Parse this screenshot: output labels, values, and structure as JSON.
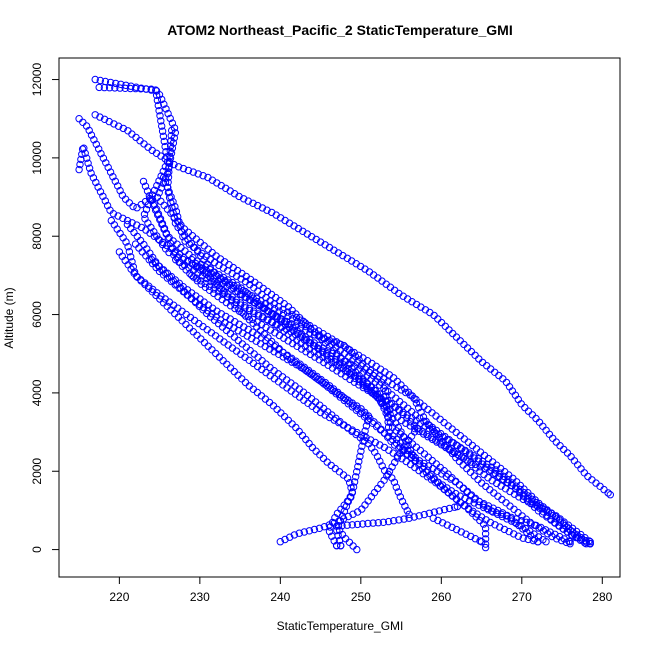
{
  "chart_data": {
    "type": "scatter",
    "title": "ATOM2 Northeast_Pacific_2 StaticTemperature_GMI",
    "xlabel": "StaticTemperature_GMI",
    "ylabel": "Altitude (m)",
    "xlim": [
      212.5,
      282.2
    ],
    "ylim": [
      -700,
      12550
    ],
    "x_ticks": [
      220,
      230,
      240,
      250,
      260,
      270,
      280
    ],
    "x_tick_labels": [
      "220",
      "230",
      "240",
      "250",
      "260",
      "270",
      "280"
    ],
    "y_ticks": [
      0,
      2000,
      4000,
      6000,
      8000,
      10000,
      12000
    ],
    "y_tick_labels": [
      "0",
      "2000",
      "4000",
      "6000",
      "8000",
      "10000",
      "12000"
    ],
    "grid": false,
    "legend": "none",
    "marker": "open-circle",
    "color": "#0000ff",
    "series": [
      {
        "points": [
          [
            217,
            12000
          ],
          [
            224.8,
            11700
          ],
          [
            227,
            10700
          ],
          [
            226,
            9600
          ],
          [
            224.7,
            9000
          ],
          [
            228,
            8200
          ],
          [
            232,
            7500
          ],
          [
            237,
            6800
          ],
          [
            241,
            6200
          ],
          [
            247,
            5000
          ],
          [
            252,
            4000
          ],
          [
            254,
            3100
          ],
          [
            257,
            2600
          ],
          [
            261,
            1900
          ],
          [
            264,
            1300
          ],
          [
            268,
            900
          ],
          [
            272,
            200
          ]
        ]
      },
      {
        "points": [
          [
            217.5,
            11800
          ],
          [
            224.5,
            11750
          ],
          [
            226,
            9900
          ],
          [
            224,
            9000
          ],
          [
            223,
            8500
          ],
          [
            226,
            7600
          ],
          [
            232,
            7000
          ],
          [
            238,
            6300
          ],
          [
            244,
            5600
          ],
          [
            250,
            4700
          ],
          [
            253,
            4200
          ],
          [
            253.5,
            3000
          ],
          [
            257,
            2300
          ],
          [
            262,
            1700
          ],
          [
            266,
            1000
          ],
          [
            272,
            600
          ],
          [
            276,
            200
          ]
        ]
      },
      {
        "points": [
          [
            215,
            11000
          ],
          [
            216,
            10800
          ],
          [
            220.5,
            9000
          ],
          [
            222,
            8700
          ],
          [
            224,
            9000
          ],
          [
            226,
            8000
          ],
          [
            230,
            7300
          ],
          [
            235,
            6700
          ],
          [
            239,
            6000
          ],
          [
            243,
            5400
          ],
          [
            248,
            4600
          ],
          [
            252,
            3900
          ],
          [
            255,
            3300
          ],
          [
            259,
            2800
          ],
          [
            263,
            2300
          ],
          [
            266,
            1800
          ],
          [
            270,
            1300
          ],
          [
            274,
            900
          ],
          [
            278.5,
            200
          ]
        ]
      },
      {
        "points": [
          [
            215,
            9700
          ],
          [
            215.5,
            10300
          ],
          [
            216.5,
            9600
          ],
          [
            219,
            8600
          ],
          [
            223,
            8200
          ],
          [
            227,
            7600
          ],
          [
            231,
            7000
          ],
          [
            236,
            6400
          ],
          [
            240,
            5900
          ],
          [
            244,
            5300
          ],
          [
            249,
            4700
          ],
          [
            253,
            4100
          ],
          [
            257,
            3400
          ],
          [
            261,
            2800
          ],
          [
            265,
            2200
          ],
          [
            269,
            1600
          ],
          [
            272,
            1000
          ],
          [
            276,
            400
          ],
          [
            278.5,
            150
          ]
        ]
      },
      {
        "points": [
          [
            219,
            8400
          ],
          [
            221,
            7800
          ],
          [
            222,
            7000
          ],
          [
            225,
            6500
          ],
          [
            229,
            5900
          ],
          [
            233,
            5300
          ],
          [
            237,
            4700
          ],
          [
            241,
            4100
          ],
          [
            245,
            3500
          ],
          [
            248.5,
            3100
          ],
          [
            253,
            2600
          ],
          [
            256,
            2200
          ],
          [
            260,
            1600
          ],
          [
            263,
            1100
          ],
          [
            266,
            700
          ],
          [
            270,
            300
          ],
          [
            272,
            200
          ]
        ]
      },
      {
        "points": [
          [
            221,
            8300
          ],
          [
            223,
            7800
          ],
          [
            225,
            7200
          ],
          [
            228,
            6600
          ],
          [
            231,
            6000
          ],
          [
            235,
            5300
          ],
          [
            239,
            4600
          ],
          [
            243,
            4000
          ],
          [
            246,
            3500
          ],
          [
            249,
            3000
          ],
          [
            251,
            2700
          ],
          [
            252,
            2400
          ],
          [
            253,
            2000
          ],
          [
            254,
            1800
          ],
          [
            255,
            1300
          ],
          [
            256,
            900
          ]
        ]
      },
      {
        "points": [
          [
            220,
            7600
          ],
          [
            222,
            7000
          ],
          [
            224,
            6600
          ],
          [
            227,
            6000
          ],
          [
            230,
            5400
          ],
          [
            233,
            4800
          ],
          [
            236,
            4200
          ],
          [
            239,
            3700
          ],
          [
            242,
            3100
          ],
          [
            244,
            2600
          ],
          [
            246,
            2200
          ],
          [
            248.5,
            1800
          ],
          [
            249,
            1400
          ],
          [
            247,
            900
          ],
          [
            246,
            500
          ],
          [
            247,
            100
          ]
        ]
      },
      {
        "points": [
          [
            222,
            7800
          ],
          [
            225,
            7100
          ],
          [
            229,
            6400
          ],
          [
            233,
            5800
          ],
          [
            238,
            5200
          ],
          [
            243,
            4600
          ],
          [
            247,
            4000
          ],
          [
            250,
            3600
          ],
          [
            251,
            3400
          ],
          [
            250.5,
            3000
          ],
          [
            250,
            2500
          ],
          [
            249.5,
            2000
          ],
          [
            249,
            1500
          ],
          [
            248,
            1000
          ],
          [
            247,
            500
          ],
          [
            247.5,
            100
          ]
        ]
      },
      {
        "points": [
          [
            224,
            7400
          ],
          [
            228,
            6700
          ],
          [
            232,
            6100
          ],
          [
            237,
            5500
          ],
          [
            242,
            4800
          ],
          [
            246,
            4200
          ],
          [
            249,
            3700
          ],
          [
            252,
            3200
          ],
          [
            254,
            2700
          ],
          [
            256,
            2400
          ],
          [
            258,
            2100
          ],
          [
            260,
            1600
          ],
          [
            263,
            1100
          ],
          [
            265.5,
            600
          ],
          [
            265.5,
            300
          ],
          [
            265.5,
            50
          ]
        ]
      },
      {
        "points": [
          [
            223,
            9400
          ],
          [
            224,
            8900
          ],
          [
            225.5,
            8200
          ],
          [
            227.5,
            7300
          ],
          [
            230,
            6800
          ],
          [
            234,
            6200
          ],
          [
            238,
            5700
          ],
          [
            242,
            5200
          ],
          [
            246,
            4700
          ],
          [
            249,
            4300
          ],
          [
            253,
            3800
          ],
          [
            256,
            3400
          ],
          [
            260,
            2900
          ],
          [
            264,
            2400
          ],
          [
            267,
            2000
          ],
          [
            270,
            1500
          ],
          [
            273,
            1000
          ],
          [
            276,
            500
          ],
          [
            278.5,
            150
          ]
        ]
      },
      {
        "points": [
          [
            226.5,
            10700
          ],
          [
            226,
            9200
          ],
          [
            227,
            8300
          ],
          [
            229,
            7800
          ],
          [
            232,
            7000
          ],
          [
            236,
            6400
          ],
          [
            240,
            5900
          ],
          [
            244,
            5500
          ],
          [
            248,
            5200
          ],
          [
            251,
            4600
          ],
          [
            254,
            4200
          ],
          [
            256.5,
            3900
          ],
          [
            258,
            3300
          ],
          [
            260,
            2800
          ],
          [
            262,
            2300
          ],
          [
            265,
            1700
          ],
          [
            268,
            1200
          ],
          [
            271,
            700
          ],
          [
            274,
            300
          ],
          [
            276,
            150
          ]
        ]
      },
      {
        "points": [
          [
            225.5,
            9500
          ],
          [
            227,
            8700
          ],
          [
            228,
            7900
          ],
          [
            232,
            7300
          ],
          [
            236,
            6800
          ],
          [
            239,
            6300
          ],
          [
            243,
            5800
          ],
          [
            247,
            5300
          ],
          [
            251,
            4800
          ],
          [
            254,
            4400
          ],
          [
            257,
            3800
          ],
          [
            260,
            3300
          ],
          [
            263,
            2800
          ],
          [
            266,
            2300
          ],
          [
            269,
            1800
          ],
          [
            272,
            1200
          ],
          [
            275,
            700
          ],
          [
            277,
            300
          ]
        ]
      },
      {
        "points": [
          [
            229,
            7400
          ],
          [
            232,
            6800
          ],
          [
            235,
            6100
          ],
          [
            238,
            5500
          ],
          [
            241,
            4900
          ],
          [
            245,
            4300
          ],
          [
            248,
            3800
          ],
          [
            251,
            3300
          ],
          [
            254,
            2800
          ],
          [
            257,
            2200
          ],
          [
            259,
            1800
          ],
          [
            262,
            1400
          ],
          [
            266,
            1000
          ],
          [
            270,
            600
          ],
          [
            273,
            200
          ]
        ]
      },
      {
        "points": [
          [
            229,
            7000
          ],
          [
            233,
            6500
          ],
          [
            237,
            6000
          ],
          [
            241,
            5600
          ],
          [
            245,
            5100
          ],
          [
            248,
            4700
          ],
          [
            250,
            4300
          ],
          [
            252,
            3900
          ],
          [
            253.5,
            3500
          ],
          [
            255,
            3000
          ],
          [
            256,
            2600
          ],
          [
            256.5,
            2400
          ]
        ]
      },
      {
        "points": [
          [
            227,
            7400
          ],
          [
            231,
            6900
          ],
          [
            235,
            6300
          ],
          [
            239,
            5800
          ],
          [
            243,
            5200
          ],
          [
            247,
            4700
          ],
          [
            251,
            4200
          ],
          [
            254,
            3700
          ],
          [
            257,
            3100
          ],
          [
            260,
            2700
          ],
          [
            263,
            2300
          ],
          [
            266,
            2000
          ],
          [
            269,
            1600
          ],
          [
            272,
            1100
          ],
          [
            274,
            700
          ],
          [
            276,
            400
          ],
          [
            278,
            150
          ]
        ]
      },
      {
        "points": [
          [
            217,
            11100
          ],
          [
            221,
            10700
          ],
          [
            224,
            10200
          ],
          [
            227,
            9800
          ],
          [
            231,
            9500
          ],
          [
            235,
            9000
          ],
          [
            239,
            8600
          ],
          [
            243,
            8100
          ],
          [
            247,
            7600
          ],
          [
            251,
            7100
          ],
          [
            255,
            6500
          ],
          [
            259,
            6000
          ],
          [
            262,
            5400
          ],
          [
            265,
            4800
          ],
          [
            268,
            4300
          ],
          [
            270,
            3700
          ],
          [
            272,
            3300
          ],
          [
            274,
            2800
          ],
          [
            276,
            2400
          ],
          [
            278,
            1900
          ],
          [
            281,
            1400
          ]
        ]
      },
      {
        "points": [
          [
            240,
            200
          ],
          [
            242,
            400
          ],
          [
            245,
            550
          ],
          [
            247,
            700
          ],
          [
            250,
            1000
          ],
          [
            253,
            1800
          ],
          [
            255,
            2500
          ],
          [
            257,
            3100
          ]
        ]
      },
      {
        "points": [
          [
            249.5,
            0
          ],
          [
            248,
            300
          ],
          [
            247,
            600
          ],
          [
            250,
            650
          ],
          [
            253,
            700
          ],
          [
            256,
            800
          ],
          [
            258,
            900
          ],
          [
            260,
            1000
          ],
          [
            262,
            1100
          ]
        ]
      },
      {
        "points": [
          [
            259,
            800
          ],
          [
            261,
            600
          ],
          [
            263,
            400
          ],
          [
            265,
            200
          ]
        ]
      }
    ]
  }
}
